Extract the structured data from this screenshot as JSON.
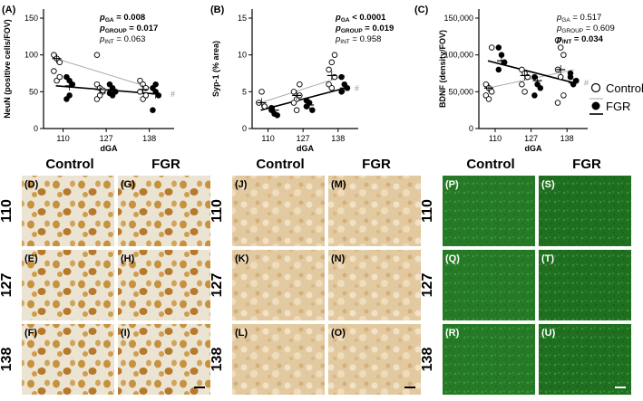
{
  "charts": [
    {
      "panel_label": "(A)",
      "ylabel": "NeuN (positive cells/FOV)",
      "xlabel": "dGA",
      "yticks": [
        "0",
        "50",
        "100",
        "150"
      ],
      "xticks": [
        "110",
        "127",
        "138"
      ],
      "stats": [
        {
          "p": "p",
          "sub": "GA",
          "val": " = 0.008",
          "bold": true
        },
        {
          "p": "p",
          "sub": "GROUP",
          "val": " = 0.017",
          "bold": true
        },
        {
          "p": "p",
          "sub": "INT",
          "val": " = 0.063",
          "bold": false
        }
      ],
      "hash": "#"
    },
    {
      "panel_label": "(B)",
      "ylabel": "Syp-1 (% area)",
      "xlabel": "dGA",
      "yticks": [
        "0",
        "5",
        "10",
        "15"
      ],
      "xticks": [
        "110",
        "127",
        "138"
      ],
      "stats": [
        {
          "p": "p",
          "sub": "GA",
          "val": " < 0.0001",
          "bold": true
        },
        {
          "p": "p",
          "sub": "GROUP",
          "val": " = 0.019",
          "bold": true
        },
        {
          "p": "p",
          "sub": "INT",
          "val": " = 0.958",
          "bold": false
        }
      ],
      "hash": "#"
    },
    {
      "panel_label": "(C)",
      "ylabel": "BDNF (density/FOV)",
      "xlabel": "dGA",
      "yticks": [
        "0",
        "50,000",
        "100,000",
        "150,000"
      ],
      "xticks": [
        "110",
        "127",
        "138"
      ],
      "stats": [
        {
          "p": "p",
          "sub": "GA",
          "val": " = 0.517",
          "bold": false
        },
        {
          "p": "p",
          "sub": "GROUP",
          "val": " = 0.609",
          "bold": false
        },
        {
          "p": "p",
          "sub": "INT",
          "val": " = 0.034",
          "bold": true
        }
      ],
      "hash": "#"
    }
  ],
  "legend": {
    "control": "Control",
    "fgr": "FGR"
  },
  "chart_data": [
    {
      "type": "scatter",
      "ylim": [
        0,
        150
      ],
      "x": [
        110,
        127,
        138
      ],
      "series": [
        {
          "name": "Control",
          "means": [
            95,
            53,
            53
          ],
          "points": [
            [
              100,
              95,
              90,
              78,
              65,
              70
            ],
            [
              60,
              55,
              50,
              40,
              45,
              52,
              100
            ],
            [
              65,
              60,
              55,
              50,
              40,
              45
            ]
          ]
        },
        {
          "name": "FGR",
          "means": [
            58,
            53,
            47
          ],
          "points": [
            [
              70,
              65,
              60,
              40,
              45
            ],
            [
              60,
              55,
              50,
              48,
              45
            ],
            [
              55,
              50,
              45,
              25,
              60
            ]
          ]
        }
      ]
    },
    {
      "type": "scatter",
      "ylim": [
        0,
        15
      ],
      "x": [
        110,
        127,
        138
      ],
      "series": [
        {
          "name": "Control",
          "means": [
            3.5,
            4.5,
            7.2
          ],
          "points": [
            [
              3.5,
              5.0,
              3.0
            ],
            [
              5.0,
              4.0,
              6.0,
              3.5,
              2.5,
              4.5
            ],
            [
              8.0,
              9.0,
              10.0,
              6.0,
              5.5,
              7.0
            ]
          ]
        },
        {
          "name": "FGR",
          "means": [
            2.5,
            3.2,
            5.5
          ],
          "points": [
            [
              2.5,
              2.0,
              1.8,
              2.8
            ],
            [
              3.0,
              3.5,
              2.5,
              3.8
            ],
            [
              5.0,
              6.0,
              5.5,
              7.0
            ]
          ]
        }
      ]
    },
    {
      "type": "scatter",
      "ylim": [
        0,
        150000
      ],
      "x": [
        110,
        127,
        138
      ],
      "series": [
        {
          "name": "Control",
          "means": [
            55000,
            72000,
            80000
          ],
          "points": [
            [
              60000,
              55000,
              50000,
              45000,
              40000,
              110000
            ],
            [
              80000,
              75000,
              70000,
              60000,
              50000
            ],
            [
              120000,
              110000,
              100000,
              80000,
              70000,
              45000,
              35000
            ]
          ]
        },
        {
          "name": "FGR",
          "means": [
            92000,
            65000,
            62000
          ],
          "points": [
            [
              110000,
              100000,
              90000,
              80000
            ],
            [
              70000,
              60000,
              55000,
              45000
            ],
            [
              70000,
              60000,
              65000,
              75000
            ]
          ]
        }
      ]
    }
  ],
  "micrographs": {
    "blocks": [
      {
        "cols": [
          "Control",
          "FGR"
        ],
        "rows": [
          "110",
          "127",
          "138"
        ],
        "labels": [
          [
            "(D)",
            "(G)"
          ],
          [
            "(E)",
            "(H)"
          ],
          [
            "(F)",
            "(I)"
          ]
        ],
        "style": "neun"
      },
      {
        "cols": [
          "Control",
          "FGR"
        ],
        "rows": [
          "110",
          "127",
          "138"
        ],
        "labels": [
          [
            "(J)",
            "(M)"
          ],
          [
            "(K)",
            "(N)"
          ],
          [
            "(L)",
            "(O)"
          ]
        ],
        "style": "syp"
      },
      {
        "cols": [
          "Control",
          "FGR"
        ],
        "rows": [
          "110",
          "127",
          "138"
        ],
        "labels": [
          [
            "(P)",
            "(S)"
          ],
          [
            "(Q)",
            "(T)"
          ],
          [
            "(R)",
            "(U)"
          ]
        ],
        "style": "bdnf"
      }
    ]
  }
}
